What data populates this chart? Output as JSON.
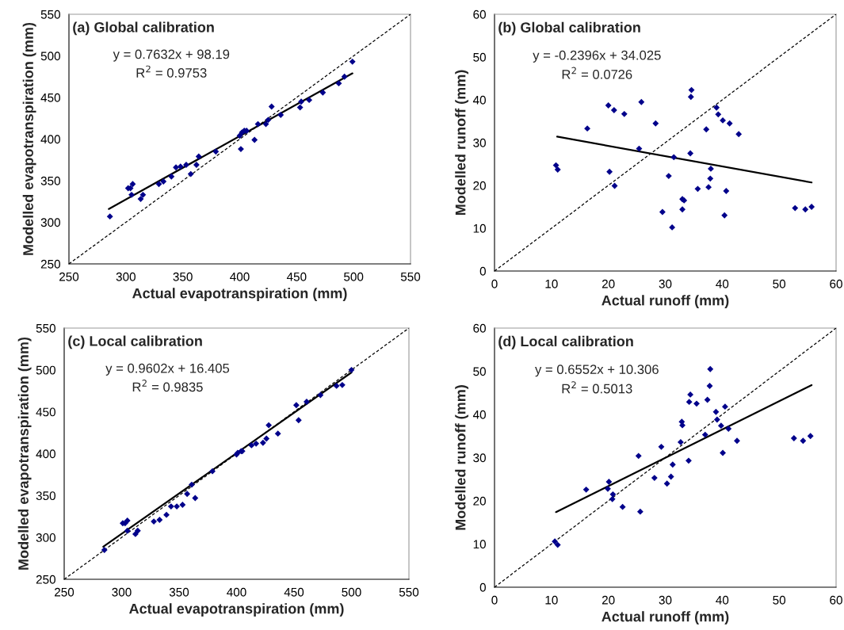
{
  "chart_data": [
    {
      "type": "scatter",
      "title": "(a) Global calibration",
      "xlabel": "Actual evapotranspiration (mm)",
      "ylabel": "Modelled evapotranspiration (mm)",
      "annotations": [
        "y = 0.7632x + 98.19",
        "R$^{2}$ = 0.9753"
      ],
      "xlim": [
        250,
        550
      ],
      "ylim": [
        250,
        550
      ],
      "xticks": [
        250,
        300,
        350,
        400,
        450,
        500,
        550
      ],
      "yticks": [
        250,
        300,
        350,
        400,
        450,
        500,
        550
      ],
      "grid": false,
      "legend": false,
      "series": [
        {
          "type": "scatter",
          "marker": "diamond",
          "color": "#00008b",
          "x": [
            286,
            302,
            304,
            306,
            305,
            313,
            315,
            329,
            333,
            340,
            344,
            348,
            353,
            357,
            362,
            364,
            379,
            401,
            400,
            402,
            404,
            406,
            413,
            416,
            423,
            425,
            428,
            436,
            453,
            454,
            461,
            473,
            487,
            492,
            499
          ],
          "values": [
            307,
            341,
            341,
            346,
            333,
            328,
            333,
            346,
            349,
            355,
            366,
            367,
            369,
            358,
            369,
            379,
            385,
            388,
            404,
            408,
            410,
            410,
            399,
            418,
            418,
            423,
            439,
            429,
            438,
            445,
            447,
            456,
            467,
            475,
            493
          ]
        },
        {
          "type": "line",
          "line_style": "solid",
          "color": "#000000",
          "x": [
            285,
            499
          ],
          "values": [
            316,
            479
          ]
        },
        {
          "type": "line",
          "line_style": "dashed",
          "color": "#000000",
          "x": [
            250,
            550
          ],
          "values": [
            250,
            550
          ]
        }
      ]
    },
    {
      "type": "scatter",
      "title": "(b) Global calibration",
      "xlabel": "Actual runoff (mm)",
      "ylabel": "Modelled runoff (mm)",
      "annotations": [
        "y = -0.2396x + 34.025",
        "R$^{2}$ = 0.0726"
      ],
      "xlim": [
        0,
        60
      ],
      "ylim": [
        0,
        60
      ],
      "xticks": [
        0,
        10,
        20,
        30,
        40,
        50,
        60
      ],
      "yticks": [
        0,
        10,
        20,
        30,
        40,
        50,
        60
      ],
      "grid": false,
      "legend": false,
      "series": [
        {
          "type": "scatter",
          "marker": "diamond",
          "color": "#00008b",
          "x": [
            10.8,
            11.1,
            16.3,
            20.0,
            20.2,
            21.0,
            21.1,
            22.8,
            25.8,
            25.4,
            28.3,
            29.5,
            30.6,
            31.2,
            31.5,
            33.0,
            33.0,
            33.3,
            34.4,
            34.5,
            34.6,
            35.7,
            37.2,
            37.6,
            37.9,
            38.0,
            39.0,
            39.3,
            40.1,
            40.4,
            40.7,
            41.3,
            42.9,
            52.8,
            54.6,
            55.7
          ],
          "values": [
            24.7,
            23.7,
            33.3,
            38.7,
            23.2,
            37.6,
            19.9,
            36.7,
            39.5,
            28.6,
            34.5,
            13.8,
            22.2,
            10.2,
            26.6,
            14.4,
            16.8,
            16.5,
            27.5,
            40.7,
            42.3,
            19.2,
            33.1,
            19.6,
            21.6,
            23.9,
            38.2,
            36.6,
            35.2,
            13.0,
            18.7,
            34.5,
            32.0,
            14.7,
            14.4,
            15.0
          ]
        },
        {
          "type": "line",
          "line_style": "solid",
          "color": "#000000",
          "x": [
            11,
            55.7
          ],
          "values": [
            31.4,
            20.7
          ]
        },
        {
          "type": "line",
          "line_style": "dashed",
          "color": "#000000",
          "x": [
            0,
            60
          ],
          "values": [
            0,
            60
          ]
        }
      ]
    },
    {
      "type": "scatter",
      "title": "(c) Local calibration",
      "xlabel": "Actual evapotranspiration (mm)",
      "ylabel": "Modelled evapotranspiration (mm)",
      "annotations": [
        "y = 0.9602x + 16.405",
        "R$^{2}$ = 0.9835"
      ],
      "xlim": [
        250,
        550
      ],
      "ylim": [
        250,
        550
      ],
      "xticks": [
        250,
        300,
        350,
        400,
        450,
        500,
        550
      ],
      "yticks": [
        250,
        300,
        350,
        400,
        450,
        500,
        550
      ],
      "grid": false,
      "legend": false,
      "series": [
        {
          "type": "scatter",
          "marker": "diamond",
          "color": "#00008b",
          "x": [
            285,
            301,
            303,
            305,
            305,
            312,
            314,
            328,
            333,
            339,
            343,
            348,
            353,
            357,
            361,
            364,
            379,
            400,
            401,
            404,
            405,
            413,
            417,
            423,
            426,
            428,
            436,
            452,
            454,
            461,
            473,
            487,
            492,
            500
          ],
          "values": [
            285,
            317,
            317,
            320,
            308,
            304,
            308,
            319,
            321,
            327,
            337,
            337,
            339,
            352,
            363,
            347,
            379,
            399,
            401,
            403,
            403,
            410,
            412,
            413,
            418,
            434,
            424,
            458,
            440,
            462,
            470,
            481,
            482,
            500
          ]
        },
        {
          "type": "line",
          "line_style": "solid",
          "color": "#000000",
          "x": [
            284,
            500
          ],
          "values": [
            289,
            497
          ]
        },
        {
          "type": "line",
          "line_style": "dashed",
          "color": "#000000",
          "x": [
            250,
            550
          ],
          "values": [
            250,
            550
          ]
        }
      ]
    },
    {
      "type": "scatter",
      "title": "(d) Local calibration",
      "xlabel": "Actual runoff (mm)",
      "ylabel": "Modelled runoff (mm)",
      "annotations": [
        "y = 0.6552x + 10.306",
        "R$^{2}$ = 0.5013"
      ],
      "xlim": [
        0,
        60
      ],
      "ylim": [
        0,
        60
      ],
      "xticks": [
        0,
        10,
        20,
        30,
        40,
        50,
        60
      ],
      "yticks": [
        0,
        10,
        20,
        30,
        40,
        50,
        60
      ],
      "grid": false,
      "legend": false,
      "series": [
        {
          "type": "scatter",
          "marker": "diamond",
          "color": "#00008b",
          "x": [
            10.6,
            11.1,
            16.1,
            19.9,
            20.1,
            20.8,
            20.7,
            22.5,
            25.3,
            25.6,
            28.1,
            29.3,
            30.3,
            31.0,
            31.3,
            32.7,
            32.9,
            33.0,
            34.1,
            34.2,
            34.4,
            35.5,
            37.0,
            37.4,
            37.8,
            37.9,
            38.9,
            39.1,
            39.8,
            40.1,
            40.5,
            41.1,
            42.6,
            52.6,
            54.2,
            55.5
          ],
          "values": [
            10.6,
            9.8,
            22.6,
            22.8,
            24.4,
            21.5,
            20.4,
            18.6,
            30.4,
            17.5,
            25.3,
            32.5,
            24.0,
            25.6,
            28.4,
            33.6,
            38.3,
            37.5,
            29.3,
            42.9,
            44.6,
            42.5,
            35.3,
            43.4,
            46.6,
            50.5,
            40.6,
            38.8,
            37.4,
            31.1,
            41.8,
            36.7,
            33.9,
            34.5,
            33.9,
            35.0
          ]
        },
        {
          "type": "line",
          "line_style": "solid",
          "color": "#000000",
          "x": [
            10.8,
            55.7
          ],
          "values": [
            17.4,
            46.8
          ]
        },
        {
          "type": "line",
          "line_style": "dashed",
          "color": "#000000",
          "x": [
            0,
            60
          ],
          "values": [
            0,
            60
          ]
        }
      ]
    }
  ]
}
